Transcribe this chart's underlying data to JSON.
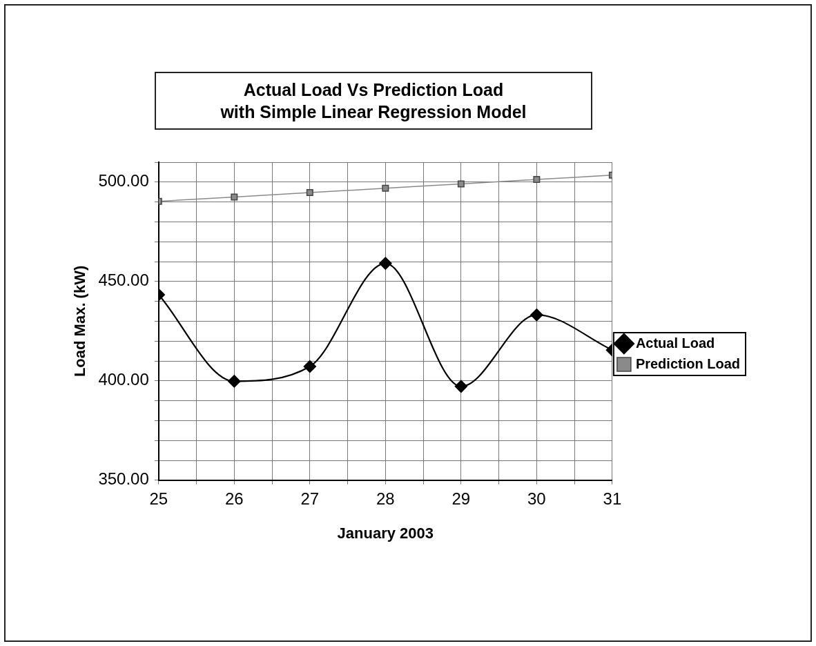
{
  "chart_data": {
    "type": "line",
    "title": "Actual Load Vs Prediction Load\nwith Simple Linear Regression Model",
    "xlabel": "January 2003",
    "ylabel": "Load Max. (kW)",
    "x": [
      25,
      26,
      27,
      28,
      29,
      30,
      31
    ],
    "series": [
      {
        "name": "Actual Load",
        "color": "#000000",
        "marker": "diamond",
        "values": [
          443.3,
          399.8,
          407.2,
          459.1,
          397.2,
          433.2,
          415.5
        ]
      },
      {
        "name": "Prediction Load",
        "color": "#8a8a8a",
        "marker": "square",
        "values": [
          490.3,
          492.5,
          494.7,
          496.9,
          499.1,
          501.3,
          503.5
        ]
      }
    ],
    "xlim": [
      25,
      31
    ],
    "xticks": [
      25,
      {
        "value": 25.5,
        "label": null
      },
      26,
      {
        "value": 26.5,
        "label": null
      },
      27,
      {
        "value": 27.5,
        "label": null
      },
      28,
      {
        "value": 28.5,
        "label": null
      },
      29,
      {
        "value": 29.5,
        "label": null
      },
      30,
      {
        "value": 30.5,
        "label": null
      },
      31
    ],
    "ylim": [
      350,
      510
    ],
    "yticks": [
      {
        "value": 350,
        "label": "350.00"
      },
      {
        "value": 360,
        "label": null
      },
      {
        "value": 370,
        "label": null
      },
      {
        "value": 380,
        "label": null
      },
      {
        "value": 390,
        "label": null
      },
      {
        "value": 400,
        "label": "400.00"
      },
      {
        "value": 410,
        "label": null
      },
      {
        "value": 420,
        "label": null
      },
      {
        "value": 430,
        "label": null
      },
      {
        "value": 440,
        "label": null
      },
      {
        "value": 450,
        "label": "450.00"
      },
      {
        "value": 460,
        "label": null
      },
      {
        "value": 470,
        "label": null
      },
      {
        "value": 480,
        "label": null
      },
      {
        "value": 490,
        "label": null
      },
      {
        "value": 500,
        "label": "500.00"
      },
      {
        "value": 510,
        "label": null
      }
    ],
    "grid": true,
    "legend": "right",
    "line_style": "solid"
  }
}
